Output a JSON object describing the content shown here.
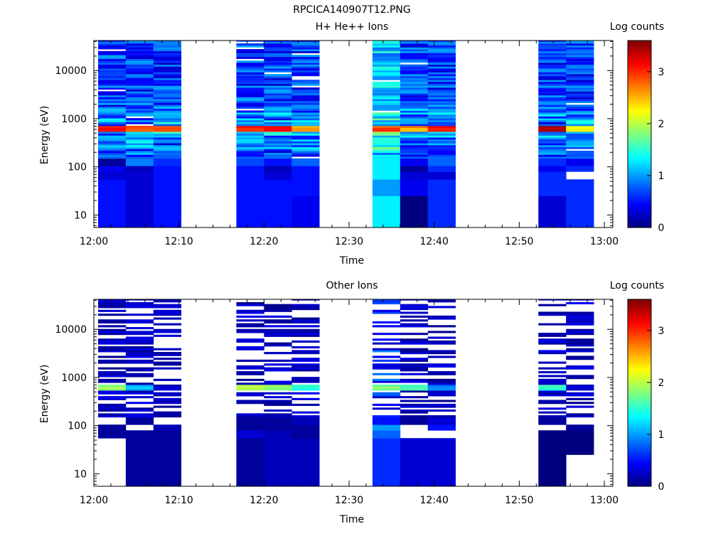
{
  "figure_title": "RPCICA140907T12.PNG",
  "colormap": [
    "#00007f",
    "#0000ff",
    "#007fff",
    "#00ffff",
    "#7fff7f",
    "#ffff00",
    "#ff7f00",
    "#ff0000",
    "#7f0000"
  ],
  "chart_data": [
    {
      "type": "heatmap",
      "title": "H+ He++ Ions",
      "colorbar_label": "Log counts",
      "colorbar_range": [
        0,
        3.6
      ],
      "colorbar_ticks": [
        0,
        1,
        2,
        3
      ],
      "xlabel": "Time",
      "ylabel": "Energy (eV)",
      "y_scale": "log",
      "xlim": [
        "12:00",
        "13:01"
      ],
      "ylim": [
        5.5,
        42000
      ],
      "x_ticks": [
        "12:00",
        "12:10",
        "12:20",
        "12:30",
        "12:40",
        "12:50",
        "13:00"
      ],
      "y_ticks": [
        10,
        100,
        1000,
        10000
      ],
      "y_tick_labels": [
        "10",
        "100",
        "1000",
        "10000"
      ],
      "time_bins": [
        {
          "start": "12:00:30",
          "end": "12:03:45"
        },
        {
          "start": "12:03:45",
          "end": "12:07:00"
        },
        {
          "start": "12:07:00",
          "end": "12:10:15"
        },
        {
          "start": "12:16:45",
          "end": "12:20:00"
        },
        {
          "start": "12:20:00",
          "end": "12:23:15"
        },
        {
          "start": "12:23:15",
          "end": "12:26:30"
        },
        {
          "start": "12:32:45",
          "end": "12:36:00"
        },
        {
          "start": "12:36:00",
          "end": "12:39:15"
        },
        {
          "start": "12:39:15",
          "end": "12:42:30"
        },
        {
          "start": "12:52:15",
          "end": "12:55:30"
        },
        {
          "start": "12:55:30",
          "end": "12:58:45"
        }
      ],
      "features": {
        "peak_band_eV": [
          520,
          700
        ],
        "peak_log_counts": [
          3.2,
          2.8,
          2.8,
          3.1,
          3.2,
          2.6,
          2.9,
          2.6,
          3.1,
          3.4,
          2.2
        ]
      },
      "low_energy_log_counts": [
        [
          0.5,
          0.5,
          0.3,
          0.4,
          0.1
        ],
        [
          0.3,
          0.3,
          0.3,
          0.2,
          0.9
        ],
        [
          0.5,
          0.5,
          0.5,
          0.5,
          0.6
        ],
        [
          0.5,
          0.5,
          0.5,
          0.5,
          0.7
        ],
        [
          0.5,
          0.5,
          0.3,
          0.2,
          0.5
        ],
        [
          0.4,
          0.5,
          0.5,
          0.5,
          0.8
        ],
        [
          1.3,
          1.0,
          1.3,
          1.3,
          1.3
        ],
        [
          0.0,
          0.4,
          0.3,
          0.1,
          0.4
        ],
        [
          0.6,
          0.6,
          0.3,
          0.6,
          0.8
        ],
        [
          0.3,
          0.6,
          0.6,
          0.4,
          0.6
        ],
        [
          0.6,
          0.6,
          null,
          0.6,
          0.4
        ]
      ]
    },
    {
      "type": "heatmap",
      "title": "Other Ions",
      "colorbar_label": "Log counts",
      "colorbar_range": [
        0,
        3.6
      ],
      "colorbar_ticks": [
        0,
        1,
        2,
        3
      ],
      "xlabel": "Time",
      "ylabel": "Energy (eV)",
      "y_scale": "log",
      "xlim": [
        "12:00",
        "13:01"
      ],
      "ylim": [
        5.5,
        42000
      ],
      "x_ticks": [
        "12:00",
        "12:10",
        "12:20",
        "12:30",
        "12:40",
        "12:50",
        "13:00"
      ],
      "y_ticks": [
        10,
        100,
        1000,
        10000
      ],
      "y_tick_labels": [
        "10",
        "100",
        "1000",
        "10000"
      ],
      "time_bins": [
        {
          "start": "12:00:30",
          "end": "12:03:45"
        },
        {
          "start": "12:03:45",
          "end": "12:07:00"
        },
        {
          "start": "12:07:00",
          "end": "12:10:15"
        },
        {
          "start": "12:16:45",
          "end": "12:20:00"
        },
        {
          "start": "12:20:00",
          "end": "12:23:15"
        },
        {
          "start": "12:23:15",
          "end": "12:26:30"
        },
        {
          "start": "12:32:45",
          "end": "12:36:00"
        },
        {
          "start": "12:36:00",
          "end": "12:39:15"
        },
        {
          "start": "12:39:15",
          "end": "12:42:30"
        },
        {
          "start": "12:52:15",
          "end": "12:55:30"
        },
        {
          "start": "12:55:30",
          "end": "12:58:45"
        }
      ],
      "features": {
        "peak_band_eV": [
          520,
          700
        ],
        "peak_log_counts": [
          1.8,
          1.1,
          0.2,
          1.9,
          1.8,
          1.5,
          1.8,
          1.6,
          1.0,
          1.6,
          0.3
        ]
      },
      "low_energy_log_counts": [
        [
          null,
          null,
          0.1,
          0.1,
          null
        ],
        [
          0.1,
          0.1,
          0.1,
          null,
          0.1
        ],
        [
          0.1,
          0.1,
          0.1,
          0.2,
          null
        ],
        [
          0.1,
          0.1,
          0.3,
          0.1,
          0.1
        ],
        [
          0.2,
          0.2,
          0.2,
          0.1,
          0.1
        ],
        [
          0.2,
          0.2,
          0.1,
          0.1,
          0.2
        ],
        [
          0.6,
          0.6,
          0.8,
          1.0,
          0.5
        ],
        [
          0.3,
          0.3,
          null,
          null,
          0.1
        ],
        [
          0.3,
          0.3,
          null,
          0.5,
          0.3
        ],
        [
          0.0,
          0.0,
          0.0,
          null,
          0.1
        ],
        [
          null,
          0.0,
          0.0,
          0.1,
          null
        ]
      ]
    }
  ]
}
